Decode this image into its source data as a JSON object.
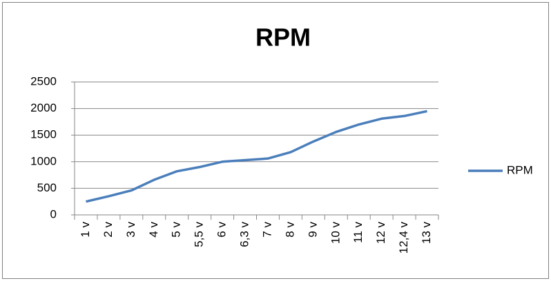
{
  "chart_data": {
    "type": "line",
    "title": "RPM",
    "categories": [
      "1 v",
      "2 v",
      "3 v",
      "4 v",
      "5 v",
      "5,5 v",
      "6 v",
      "6,3 v",
      "7 v",
      "8 v",
      "9 v",
      "10 v",
      "11 v",
      "12 v",
      "12,4 v",
      "13 v"
    ],
    "series": [
      {
        "name": "RPM",
        "color": "#4a7ebb",
        "values": [
          250,
          350,
          460,
          660,
          820,
          900,
          1000,
          1030,
          1060,
          1180,
          1380,
          1560,
          1700,
          1810,
          1860,
          1950
        ]
      }
    ],
    "ylim": [
      0,
      2500
    ],
    "yticks": [
      0,
      500,
      1000,
      1500,
      2000,
      2500
    ],
    "grid": true,
    "legend": "right"
  }
}
